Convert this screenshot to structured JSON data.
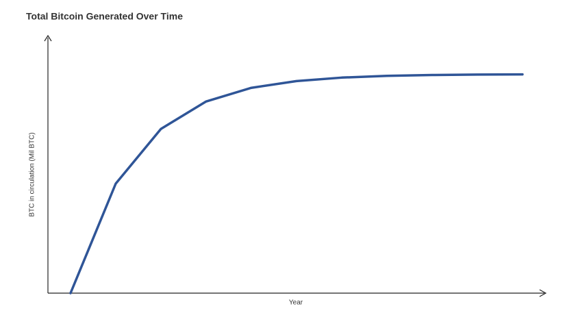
{
  "chart_data": {
    "type": "line",
    "title": "Total Bitcoin Generated Over Time",
    "xlabel": "Year",
    "ylabel": "BTC in circulation (Mil BTC)",
    "categories": [
      null,
      null,
      null,
      null,
      null,
      null,
      null,
      null,
      null,
      null,
      null
    ],
    "series": [
      {
        "name": null,
        "color": "#2f5597",
        "values": [
          0,
          10.5,
          15.75,
          18.38,
          19.69,
          20.34,
          20.67,
          20.84,
          20.92,
          20.96,
          20.98
        ]
      }
    ],
    "ylim": [
      0,
      24.5
    ]
  }
}
